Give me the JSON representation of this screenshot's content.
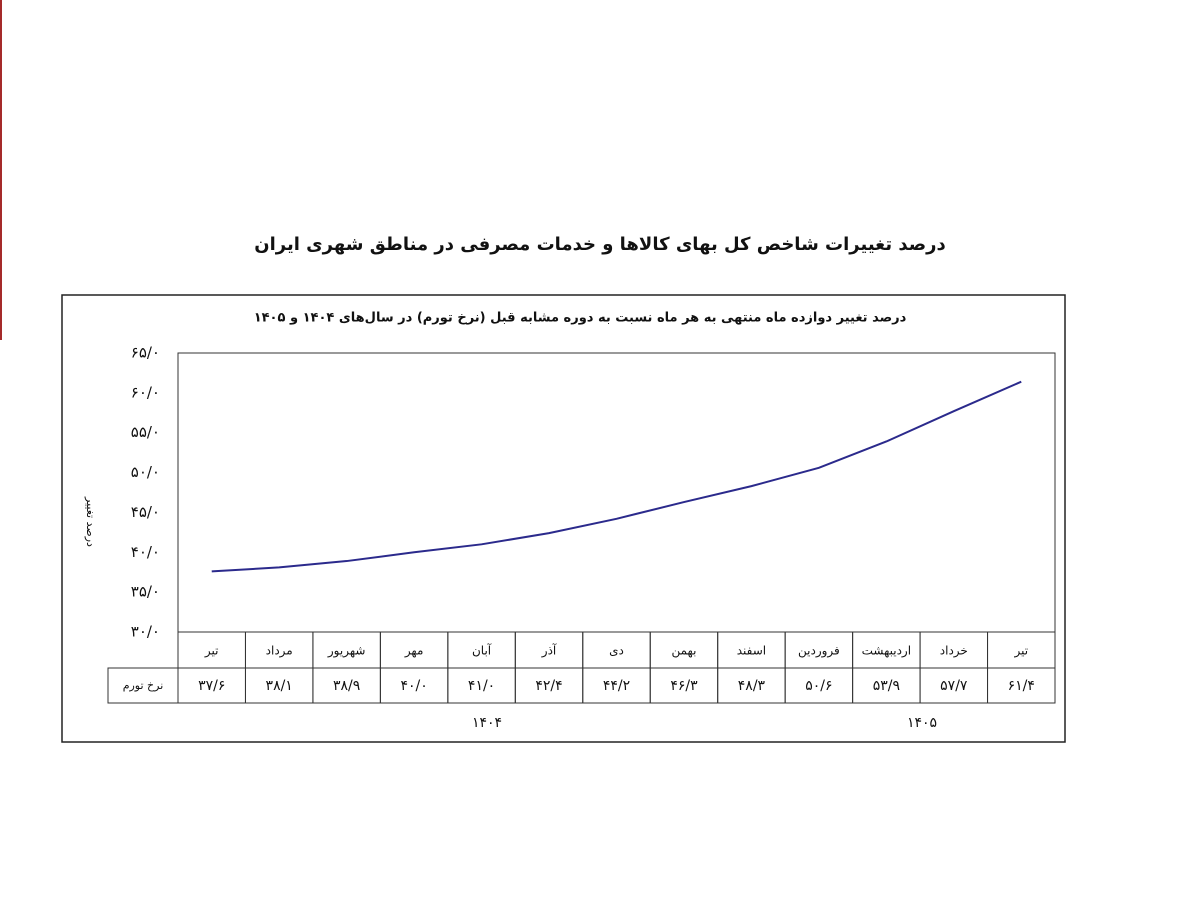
{
  "chart_data": {
    "type": "line",
    "title": "درصد تغییرات شاخص کل بهای کالاها و خدمات مصرفی در مناطق شهری ایران",
    "subtitle": "درصد تغییر دوازده ماه منتهی به هر ماه نسبت به دوره مشابه قبل (نرخ تورم) در سال‌های ۱۴۰۴ و ۱۴۰۵",
    "y_label": "درصد تغییر",
    "table_row_label": "نرخ تورم",
    "year_labels": [
      "۱۴۰۴",
      "۱۴۰۵"
    ],
    "categories": [
      "تیر",
      "مرداد",
      "شهریور",
      "مهر",
      "آبان",
      "آذر",
      "دی",
      "بهمن",
      "اسفند",
      "فروردین",
      "اردیبهشت",
      "خرداد",
      "تیر"
    ],
    "values": [
      37.6,
      38.1,
      38.9,
      40.0,
      41.0,
      42.4,
      44.2,
      46.3,
      48.3,
      50.6,
      53.9,
      57.7,
      61.4
    ],
    "value_labels": [
      "۳۷/۶",
      "۳۸/۱",
      "۳۸/۹",
      "۴۰/۰",
      "۴۱/۰",
      "۴۲/۴",
      "۴۴/۲",
      "۴۶/۳",
      "۴۸/۳",
      "۵۰/۶",
      "۵۳/۹",
      "۵۷/۷",
      "۶۱/۴"
    ],
    "color": "#2b2a8c",
    "ylim": [
      30,
      65
    ],
    "yticks": [
      {
        "value": 30,
        "label": "۳۰/۰"
      },
      {
        "value": 35,
        "label": "۳۵/۰"
      },
      {
        "value": 40,
        "label": "۴۰/۰"
      },
      {
        "value": 45,
        "label": "۴۵/۰"
      },
      {
        "value": 50,
        "label": "۵۰/۰"
      },
      {
        "value": 55,
        "label": "۵۵/۰"
      },
      {
        "value": 60,
        "label": "۶۰/۰"
      },
      {
        "value": 65,
        "label": "۶۵/۰"
      }
    ],
    "grid": false
  }
}
